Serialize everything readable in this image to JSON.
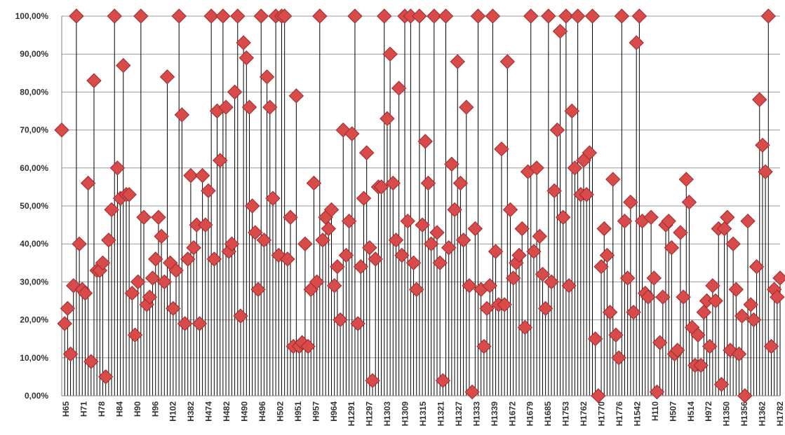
{
  "chart_data": {
    "type": "scatter",
    "title": "",
    "xlabel": "",
    "ylabel": "",
    "ylim": [
      0,
      1
    ],
    "grid": true,
    "y_ticks": [
      "0,00%",
      "10,00%",
      "20,00%",
      "30,00%",
      "40,00%",
      "50,00%",
      "60,00%",
      "70,00%",
      "80,00%",
      "90,00%",
      "100,00%"
    ],
    "x_tick_labels": [
      "H65",
      "H71",
      "H78",
      "H84",
      "H90",
      "H96",
      "H102",
      "H382",
      "H474",
      "H482",
      "H490",
      "H496",
      "H502",
      "H951",
      "H957",
      "H964",
      "H1291",
      "H1297",
      "H1303",
      "H1309",
      "H1315",
      "H1321",
      "H1327",
      "H1333",
      "H1339",
      "H1672",
      "H1679",
      "H1685",
      "H1753",
      "H1762",
      "H1770",
      "H1776",
      "H1542",
      "H110",
      "H507",
      "H514",
      "H972",
      "H1350",
      "H1356",
      "H1362",
      "H1782"
    ],
    "marker_color": "#d94a4a",
    "marker_edge_color": "#9c2b2b",
    "drop_line_color": "#000000",
    "values": [
      0.7,
      0.19,
      0.23,
      0.11,
      0.29,
      1.0,
      0.4,
      0.28,
      0.27,
      0.56,
      0.09,
      0.83,
      0.33,
      0.33,
      0.35,
      0.05,
      0.41,
      0.49,
      1.0,
      0.6,
      0.52,
      0.87,
      0.53,
      0.53,
      0.27,
      0.16,
      0.3,
      1.0,
      0.47,
      0.24,
      0.26,
      0.31,
      0.36,
      0.47,
      0.42,
      0.3,
      0.84,
      0.35,
      0.23,
      0.33,
      1.0,
      0.74,
      0.19,
      0.36,
      0.58,
      0.39,
      0.45,
      0.19,
      0.58,
      0.45,
      0.54,
      1.0,
      0.36,
      0.75,
      0.62,
      1.0,
      0.76,
      0.38,
      0.4,
      0.8,
      1.0,
      0.21,
      0.93,
      0.89,
      0.76,
      0.5,
      0.43,
      0.28,
      1.0,
      0.41,
      0.84,
      0.76,
      0.52,
      1.0,
      0.37,
      1.0,
      1.0,
      0.36,
      0.47,
      0.13,
      0.79,
      0.13,
      0.14,
      0.4,
      0.13,
      0.28,
      0.56,
      0.3,
      1.0,
      0.41,
      0.47,
      0.44,
      0.49,
      0.29,
      0.34,
      0.2,
      0.7,
      0.37,
      0.46,
      0.69,
      1.0,
      0.19,
      0.34,
      0.52,
      0.64,
      0.39,
      0.04,
      0.36,
      0.55,
      0.55,
      1.0,
      0.73,
      0.9,
      0.56,
      0.41,
      0.81,
      0.37,
      1.0,
      0.46,
      1.0,
      0.35,
      0.28,
      1.0,
      0.45,
      0.67,
      0.56,
      0.4,
      1.0,
      0.43,
      0.35,
      0.04,
      1.0,
      0.39,
      0.61,
      0.49,
      0.88,
      0.56,
      0.41,
      0.76,
      0.29,
      0.01,
      0.44,
      1.0,
      0.28,
      0.13,
      0.23,
      0.29,
      1.0,
      0.38,
      0.24,
      0.65,
      0.24,
      0.88,
      0.49,
      0.31,
      0.35,
      0.37,
      0.44,
      0.18,
      0.59,
      1.0,
      0.38,
      0.6,
      0.42,
      0.32,
      0.23,
      1.0,
      0.3,
      0.54,
      0.7,
      0.96,
      0.47,
      1.0,
      0.29,
      0.75,
      0.6,
      1.0,
      0.53,
      0.62,
      0.53,
      0.64,
      1.0,
      0.15,
      0.0,
      0.34,
      0.44,
      0.37,
      0.22,
      0.57,
      0.16,
      0.1,
      1.0,
      0.46,
      0.31,
      0.51,
      0.22,
      0.93,
      1.0,
      0.46,
      0.27,
      0.26,
      0.47,
      0.31,
      0.01,
      0.14,
      0.26,
      0.45,
      0.46,
      0.39,
      0.11,
      0.12,
      0.43,
      0.26,
      0.57,
      0.51,
      0.18,
      0.08,
      0.16,
      0.08,
      0.22,
      0.25,
      0.13,
      0.29,
      0.25,
      0.44,
      0.03,
      0.44,
      0.47,
      0.12,
      0.4,
      0.28,
      0.11,
      0.21,
      0.0,
      0.46,
      0.24,
      0.2,
      0.34,
      0.78,
      0.66,
      0.59,
      1.0,
      0.13,
      0.28,
      0.26,
      0.31
    ]
  }
}
